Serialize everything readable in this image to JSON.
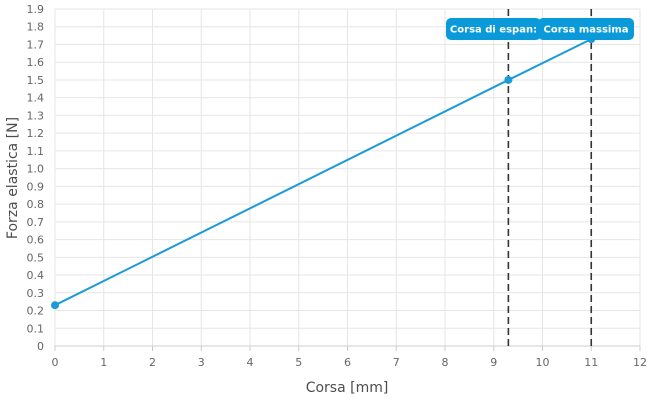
{
  "chart_data": {
    "type": "line",
    "xlabel": "Corsa [mm]",
    "ylabel": "Forza elastica [N]",
    "xlim": [
      0,
      12
    ],
    "ylim": [
      0,
      1.9
    ],
    "x_ticks": [
      "0",
      "1",
      "2",
      "3",
      "4",
      "5",
      "6",
      "7",
      "8",
      "9",
      "10",
      "11",
      "12"
    ],
    "y_ticks": [
      "0",
      "0.1",
      "0.2",
      "0.3",
      "0.4",
      "0.5",
      "0.6",
      "0.7",
      "0.8",
      "0.9",
      "1.0",
      "1.1",
      "1.2",
      "1.3",
      "1.4",
      "1.5",
      "1.6",
      "1.7",
      "1.8",
      "1.9"
    ],
    "grid": true,
    "series": [
      {
        "color": "#1a9bd7",
        "points": [
          {
            "x": 0,
            "y": 0.23
          },
          {
            "x": 9.3,
            "y": 1.5
          },
          {
            "x": 11,
            "y": 1.73
          }
        ]
      }
    ],
    "reference_lines": [
      {
        "x": 9.3,
        "label": "Corsa di espansione"
      },
      {
        "x": 11,
        "label": "Corsa massima"
      }
    ],
    "tooltip_labels": [
      "Corsa di espan:",
      "Corsa massima"
    ],
    "colors": {
      "line": "#1a9bd7",
      "tooltip": "#0a9ad9",
      "reference": "#333333"
    }
  }
}
